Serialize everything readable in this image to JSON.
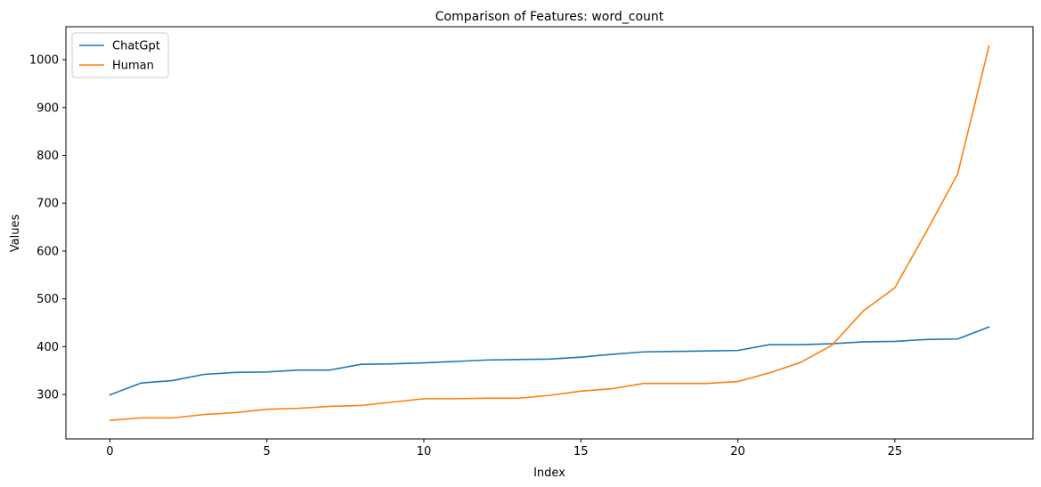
{
  "chart_data": {
    "type": "line",
    "title": "Comparison of Features: word_count",
    "xlabel": "Index",
    "ylabel": "Values",
    "xlim": [
      -1.4,
      29.4
    ],
    "ylim": [
      207,
      1069
    ],
    "xticks": [
      0,
      5,
      10,
      15,
      20,
      25
    ],
    "yticks": [
      300,
      400,
      500,
      600,
      700,
      800,
      900,
      1000
    ],
    "x": [
      0,
      1,
      2,
      3,
      4,
      5,
      6,
      7,
      8,
      9,
      10,
      11,
      12,
      13,
      14,
      15,
      16,
      17,
      18,
      19,
      20,
      21,
      22,
      23,
      24,
      25,
      26,
      27,
      28
    ],
    "series": [
      {
        "name": "ChatGpt",
        "color": "#1f77b4",
        "values": [
          299,
          324,
          329,
          342,
          346,
          347,
          351,
          351,
          363,
          364,
          366,
          369,
          372,
          373,
          374,
          378,
          384,
          389,
          390,
          391,
          392,
          404,
          404,
          406,
          410,
          411,
          415,
          416,
          441
        ]
      },
      {
        "name": "Human",
        "color": "#ff7f0e",
        "values": [
          246,
          251,
          251,
          258,
          262,
          269,
          271,
          275,
          277,
          284,
          291,
          291,
          292,
          292,
          298,
          307,
          312,
          323,
          323,
          323,
          327,
          345,
          367,
          403,
          475,
          523,
          640,
          761,
          1029
        ]
      }
    ],
    "legend_position": "top-left",
    "grid": false
  }
}
